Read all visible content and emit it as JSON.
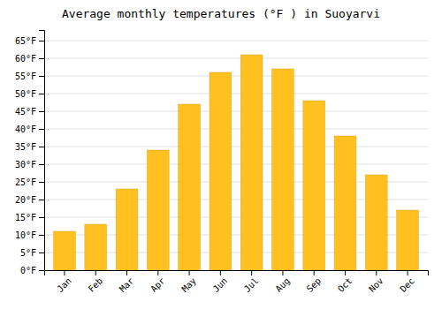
{
  "chart_data": {
    "type": "bar",
    "title": "Average monthly temperatures (°F ) in Suoyarvi",
    "categories": [
      "Jan",
      "Feb",
      "Mar",
      "Apr",
      "May",
      "Jun",
      "Jul",
      "Aug",
      "Sep",
      "Oct",
      "Nov",
      "Dec"
    ],
    "values": [
      11,
      13,
      23,
      34,
      47,
      56,
      61,
      57,
      48,
      38,
      27,
      17
    ],
    "color": "#FFC020",
    "ylim": [
      0,
      68
    ],
    "yticks": [
      {
        "value": 0,
        "label": "0°F"
      },
      {
        "value": 5,
        "label": "5°F"
      },
      {
        "value": 10,
        "label": "10°F"
      },
      {
        "value": 15,
        "label": "15°F"
      },
      {
        "value": 20,
        "label": "20°F"
      },
      {
        "value": 25,
        "label": "25°F"
      },
      {
        "value": 30,
        "label": "30°F"
      },
      {
        "value": 35,
        "label": "35°F"
      },
      {
        "value": 40,
        "label": "40°F"
      },
      {
        "value": 45,
        "label": "45°F"
      },
      {
        "value": 50,
        "label": "50°F"
      },
      {
        "value": 55,
        "label": "55°F"
      },
      {
        "value": 60,
        "label": "60°F"
      },
      {
        "value": 65,
        "label": "65°F"
      }
    ],
    "grid": true
  }
}
